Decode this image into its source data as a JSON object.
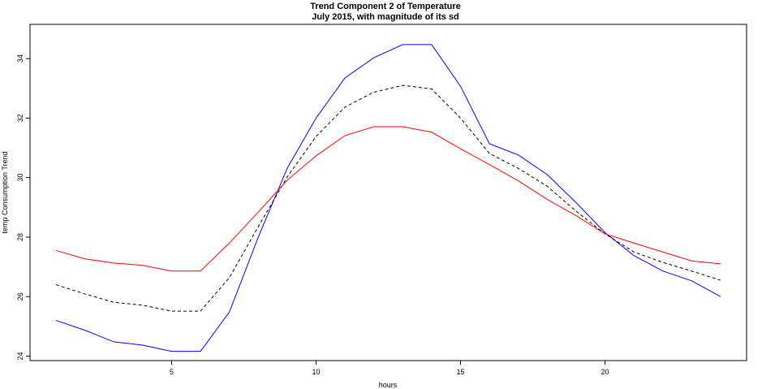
{
  "chart_data": {
    "type": "line",
    "title": "Trend Component 2 of Temperature",
    "subtitle": "July 2015, with magnitude of its sd",
    "xlabel": "hours",
    "ylabel": "temp Consumption Trend",
    "xlim": [
      0.1,
      24.9
    ],
    "ylim": [
      23.85,
      35.15
    ],
    "xticks": [
      5,
      10,
      15,
      20
    ],
    "yticks": [
      24,
      26,
      28,
      30,
      32,
      34
    ],
    "grid": false,
    "x": [
      1,
      2,
      3,
      4,
      5,
      6,
      7,
      8,
      9,
      10,
      11,
      12,
      13,
      14,
      15,
      16,
      17,
      18,
      19,
      20,
      21,
      22,
      23,
      24
    ],
    "series": [
      {
        "color": "#0000ff",
        "dash": "solid",
        "values": [
          25.2,
          24.87,
          24.48,
          24.37,
          24.16,
          24.16,
          25.48,
          28.0,
          30.31,
          32.0,
          33.35,
          34.03,
          34.47,
          34.47,
          33.07,
          31.14,
          30.76,
          30.1,
          29.16,
          28.15,
          27.38,
          26.86,
          26.53,
          26.0
        ]
      },
      {
        "color": "#000000",
        "dash": "dashed",
        "values": [
          26.4,
          26.09,
          25.81,
          25.71,
          25.51,
          25.51,
          26.64,
          28.35,
          30.02,
          31.38,
          32.37,
          32.87,
          33.1,
          32.98,
          32.0,
          30.81,
          30.31,
          29.71,
          28.87,
          28.11,
          27.5,
          27.15,
          26.86,
          26.55
        ]
      },
      {
        "color": "#ff0000",
        "dash": "solid",
        "values": [
          27.55,
          27.27,
          27.13,
          27.05,
          26.86,
          26.86,
          27.8,
          28.84,
          29.91,
          30.73,
          31.41,
          31.71,
          31.71,
          31.53,
          30.97,
          30.44,
          29.89,
          29.27,
          28.72,
          28.11,
          27.8,
          27.5,
          27.2,
          27.1
        ]
      }
    ]
  }
}
